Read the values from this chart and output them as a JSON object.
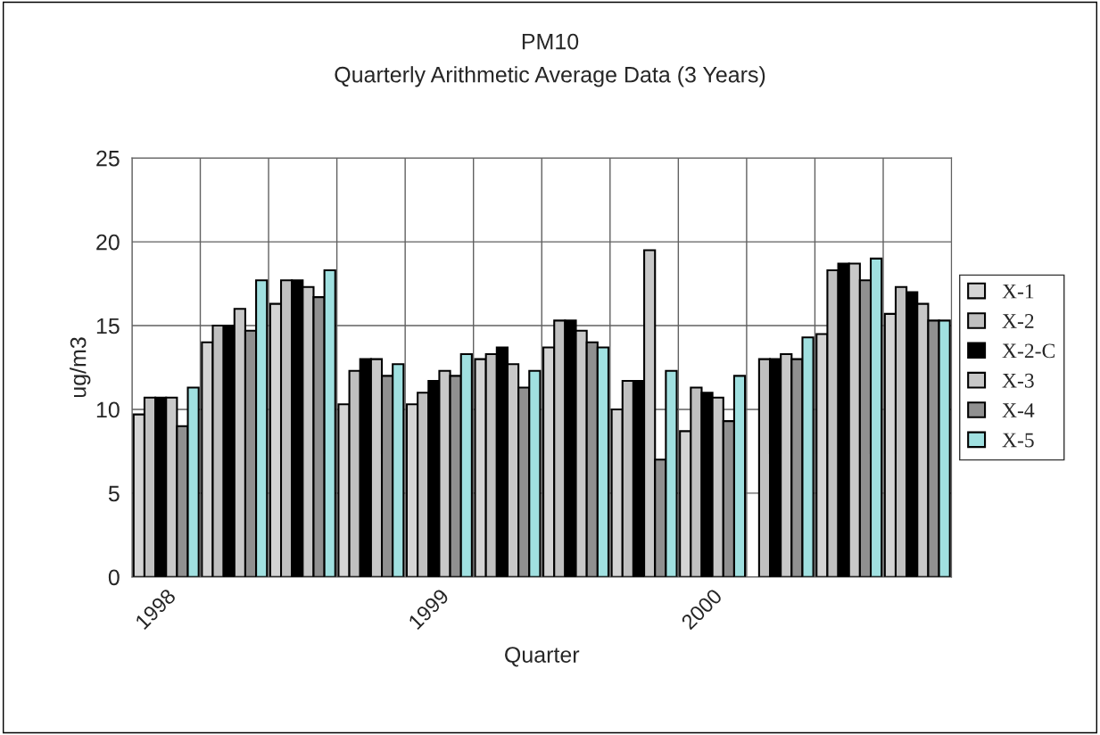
{
  "chart_data": {
    "type": "bar",
    "title": "PM10",
    "subtitle": "Quarterly Arithmetic Average Data (3 Years)",
    "xlabel": "Quarter",
    "ylabel": "ug/m3",
    "categories": [
      "1998",
      null,
      null,
      null,
      "1999",
      null,
      null,
      null,
      "2000",
      null,
      null,
      null
    ],
    "series": [
      {
        "name": "X-1",
        "color": "#d4d4d4",
        "values": [
          9.7,
          14.0,
          16.3,
          10.3,
          10.3,
          13.0,
          13.7,
          10.0,
          8.7,
          null,
          14.5,
          15.7
        ]
      },
      {
        "name": "X-2",
        "color": "#c0c0c0",
        "values": [
          10.7,
          15.0,
          17.7,
          12.3,
          11.0,
          13.3,
          15.3,
          11.7,
          11.3,
          13.0,
          18.3,
          17.3
        ]
      },
      {
        "name": "X-2-C",
        "color": "#000000",
        "values": [
          10.7,
          15.0,
          17.7,
          13.0,
          11.7,
          13.7,
          15.3,
          11.7,
          11.0,
          13.0,
          18.7,
          17.0
        ]
      },
      {
        "name": "X-3",
        "color": "#c8c8c8",
        "values": [
          10.7,
          16.0,
          17.3,
          13.0,
          12.3,
          12.7,
          14.7,
          19.5,
          10.7,
          13.3,
          18.7,
          16.3
        ]
      },
      {
        "name": "X-4",
        "color": "#909090",
        "values": [
          9.0,
          14.7,
          16.7,
          12.0,
          12.0,
          11.3,
          14.0,
          7.0,
          9.3,
          13.0,
          17.7,
          15.3
        ]
      },
      {
        "name": "X-5",
        "color": "#a0e0e0",
        "values": [
          11.3,
          17.7,
          18.3,
          12.7,
          13.3,
          12.3,
          13.7,
          12.3,
          12.0,
          14.3,
          19.0,
          15.3
        ]
      }
    ],
    "ylim": [
      0,
      25
    ],
    "yticks": [
      0,
      5,
      10,
      15,
      20,
      25
    ],
    "grid": true,
    "legend": "right"
  }
}
